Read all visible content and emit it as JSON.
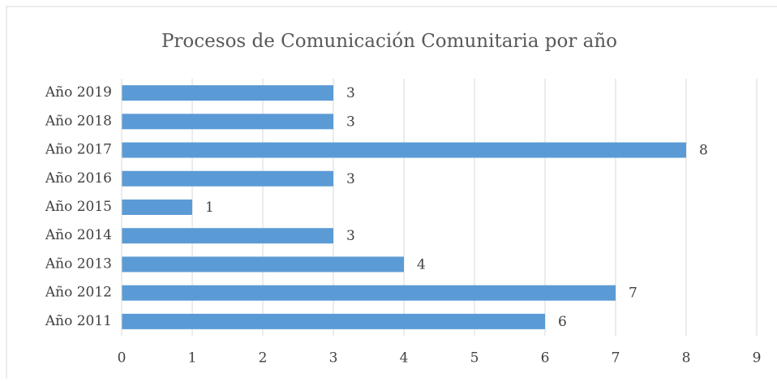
{
  "chart_data": {
    "type": "bar",
    "orientation": "horizontal",
    "title": "Procesos de Comunicación Comunitaria por año",
    "categories": [
      "Año 2011",
      "Año 2012",
      "Año 2013",
      "Año 2014",
      "Año 2015",
      "Año 2016",
      "Año 2017",
      "Año 2018",
      "Año 2019"
    ],
    "values": [
      6,
      7,
      4,
      3,
      1,
      3,
      8,
      3,
      3
    ],
    "color": "#5b9bd5",
    "xlim": [
      0,
      9
    ],
    "xticks": [
      0,
      1,
      2,
      3,
      4,
      5,
      6,
      7,
      8,
      9
    ],
    "grid": true
  }
}
